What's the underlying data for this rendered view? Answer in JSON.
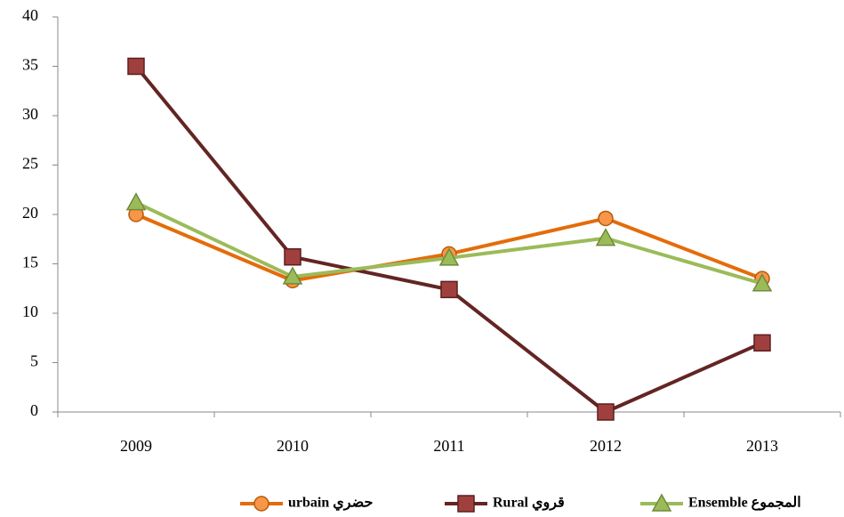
{
  "chart_data": {
    "type": "line",
    "categories": [
      "2009",
      "2010",
      "2011",
      "2012",
      "2013"
    ],
    "series": [
      {
        "name": "urbain حضري",
        "color": "#e46c0a",
        "marker": "circle",
        "values": [
          20,
          13.3,
          16,
          19.6,
          13.5
        ]
      },
      {
        "name": "Rural قروي",
        "color": "#632523",
        "marker": "square",
        "values": [
          35,
          15.7,
          12.4,
          0,
          7
        ]
      },
      {
        "name": "Ensemble المجموع",
        "color": "#9bbb59",
        "marker": "triangle",
        "values": [
          21.2,
          13.7,
          15.6,
          17.6,
          13
        ]
      }
    ],
    "ylim": [
      0,
      40
    ],
    "yticks": [
      0,
      5,
      10,
      15,
      20,
      25,
      30,
      35,
      40
    ],
    "grid": false,
    "legend": "bottom"
  }
}
